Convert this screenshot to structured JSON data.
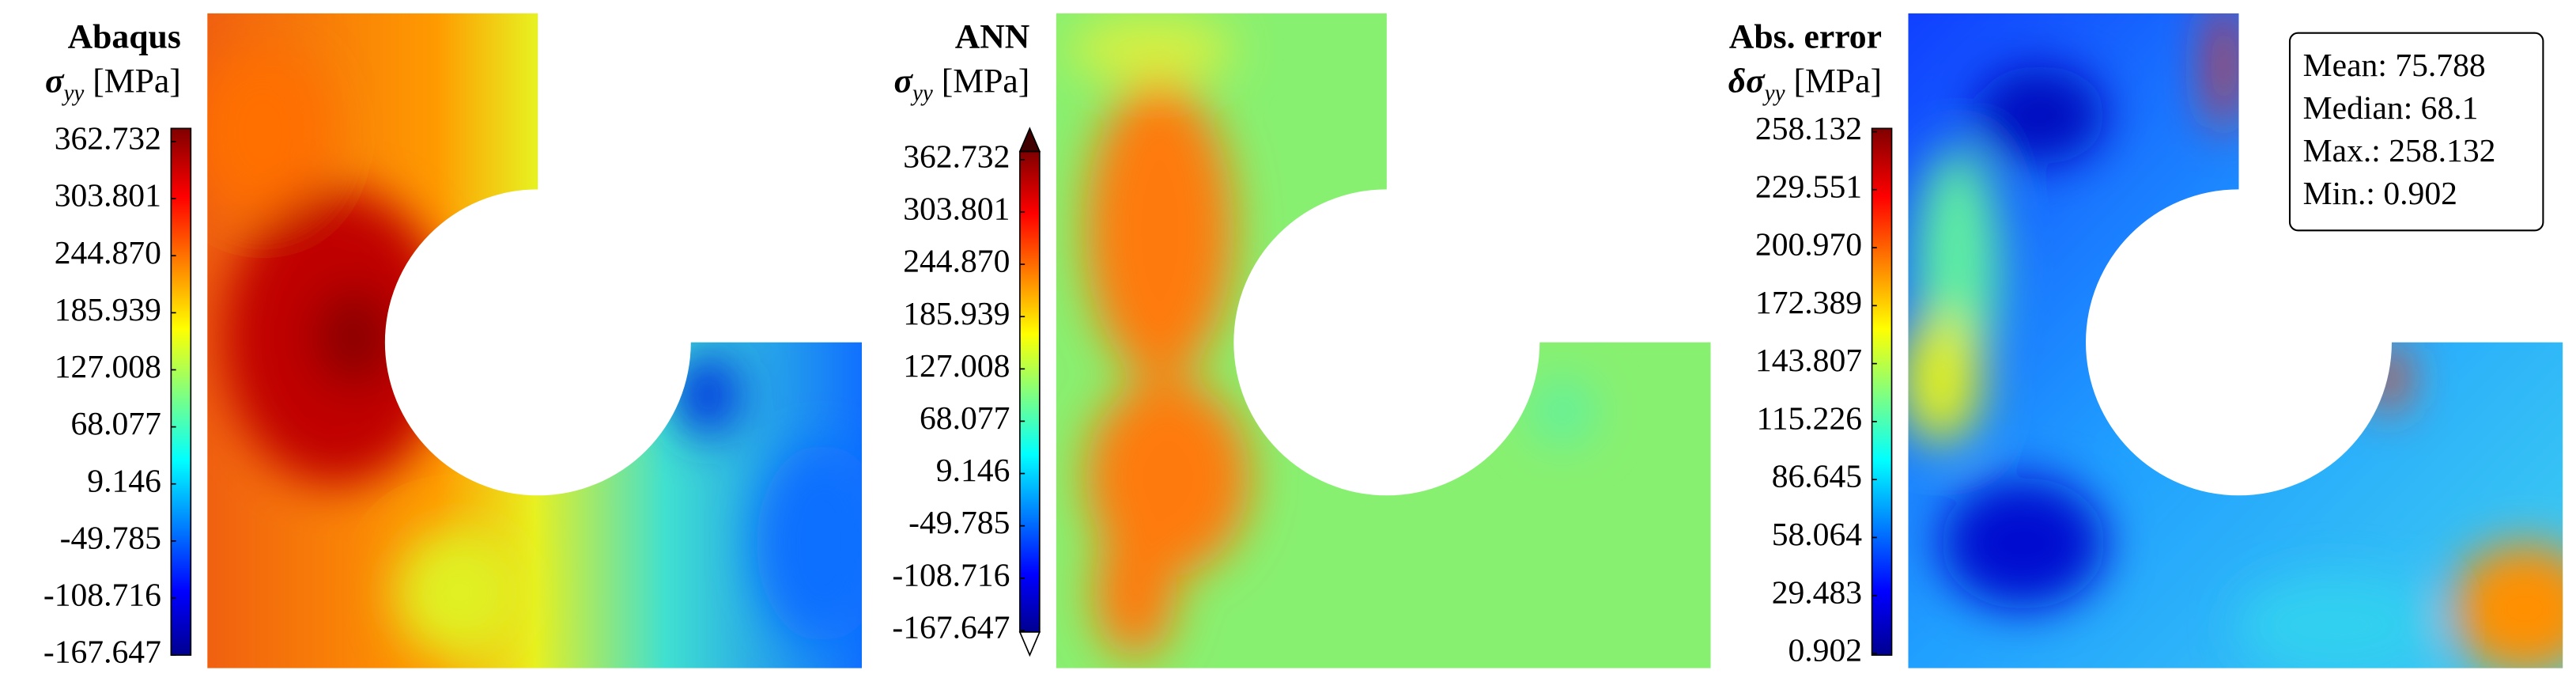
{
  "panels": [
    {
      "title": "Abaqus",
      "symbol": "σ",
      "subscript": "yy",
      "unit": "[MPa]",
      "ticks": [
        "362.732",
        "303.801",
        "244.870",
        "185.939",
        "127.008",
        "68.077",
        "9.146",
        "-49.785",
        "-108.716",
        "-167.647"
      ]
    },
    {
      "title": "ANN",
      "symbol": "σ",
      "subscript": "yy",
      "unit": "[MPa]",
      "ticks": [
        "362.732",
        "303.801",
        "244.870",
        "185.939",
        "127.008",
        "68.077",
        "9.146",
        "-49.785",
        "-108.716",
        "-167.647"
      ]
    },
    {
      "title": "Abs. error",
      "symbol": "δσ",
      "subscript": "yy",
      "unit": "[MPa]",
      "ticks": [
        "258.132",
        "229.551",
        "200.970",
        "172.389",
        "143.807",
        "115.226",
        "86.645",
        "58.064",
        "29.483",
        "0.902"
      ]
    }
  ],
  "stats": [
    {
      "label": "Mean:",
      "value": "75.788"
    },
    {
      "label": "Median:",
      "value": "68.1"
    },
    {
      "label": "Max.:",
      "value": "258.132"
    },
    {
      "label": "Min.:",
      "value": "0.902"
    }
  ]
}
